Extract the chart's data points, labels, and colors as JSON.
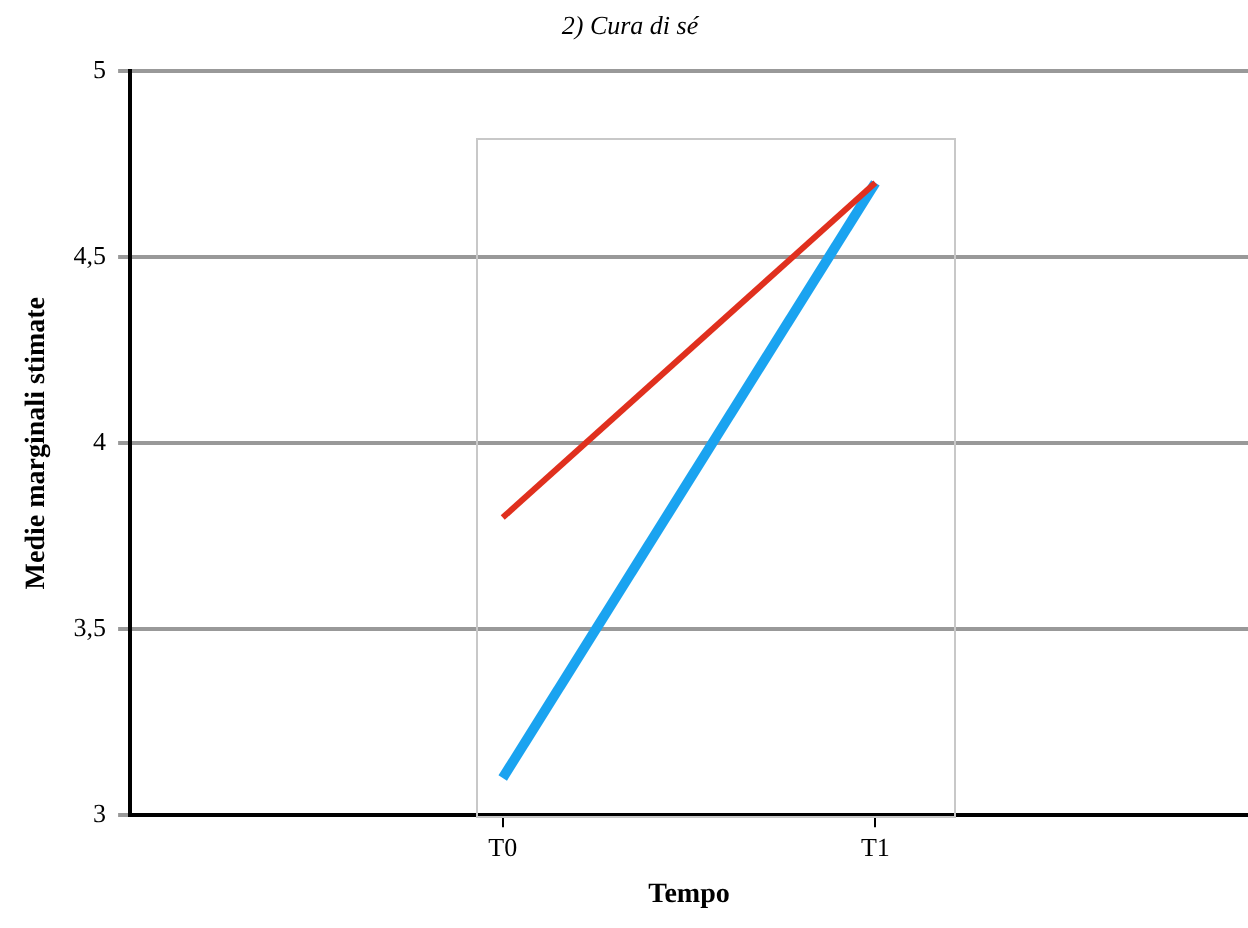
{
  "chart_data": {
    "type": "line",
    "title": "2) Cura di sé",
    "xlabel": "Tempo",
    "ylabel": "Medie marginali stimate",
    "categories": [
      "T0",
      "T1"
    ],
    "series": [
      {
        "color": "#e0301e",
        "values": [
          3.8,
          4.7
        ]
      },
      {
        "color": "#1aa3f0",
        "values": [
          3.1,
          4.7
        ]
      }
    ],
    "ylim": [
      3,
      5
    ],
    "yticks": [
      3,
      {
        "value": 3.5,
        "label": "3,5"
      },
      4,
      {
        "value": 4.5,
        "label": "4,5"
      },
      5
    ],
    "grid": "y",
    "legend": false,
    "marker": "none",
    "line_style": "solid"
  }
}
